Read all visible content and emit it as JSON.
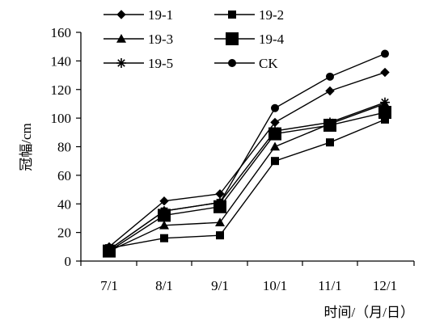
{
  "chart_data": {
    "type": "line",
    "categories": [
      "7/1",
      "8/1",
      "9/1",
      "10/1",
      "11/1",
      "12/1"
    ],
    "series": [
      {
        "name": "19-1",
        "marker": "diamond",
        "values": [
          10,
          42,
          47,
          97,
          119,
          132
        ]
      },
      {
        "name": "19-2",
        "marker": "square-small",
        "values": [
          9,
          16,
          18,
          70,
          83,
          99
        ]
      },
      {
        "name": "19-3",
        "marker": "triangle",
        "values": [
          7,
          25,
          27,
          80,
          96,
          110
        ]
      },
      {
        "name": "19-4",
        "marker": "square-large",
        "values": [
          7,
          32,
          38,
          89,
          95,
          104
        ]
      },
      {
        "name": "19-5",
        "marker": "asterisk",
        "values": [
          8,
          35,
          41,
          91,
          97,
          111
        ]
      },
      {
        "name": "CK",
        "marker": "circle",
        "values": [
          8,
          35,
          41,
          107,
          129,
          145
        ]
      }
    ],
    "xlabel": "时间/（月/日）",
    "ylabel": "冠幅/cm",
    "ylim": [
      0,
      160
    ],
    "yticks": [
      0,
      20,
      40,
      60,
      80,
      100,
      120,
      140,
      160
    ],
    "grid": false,
    "legend_position": "top-left",
    "line_color": "#000000"
  }
}
